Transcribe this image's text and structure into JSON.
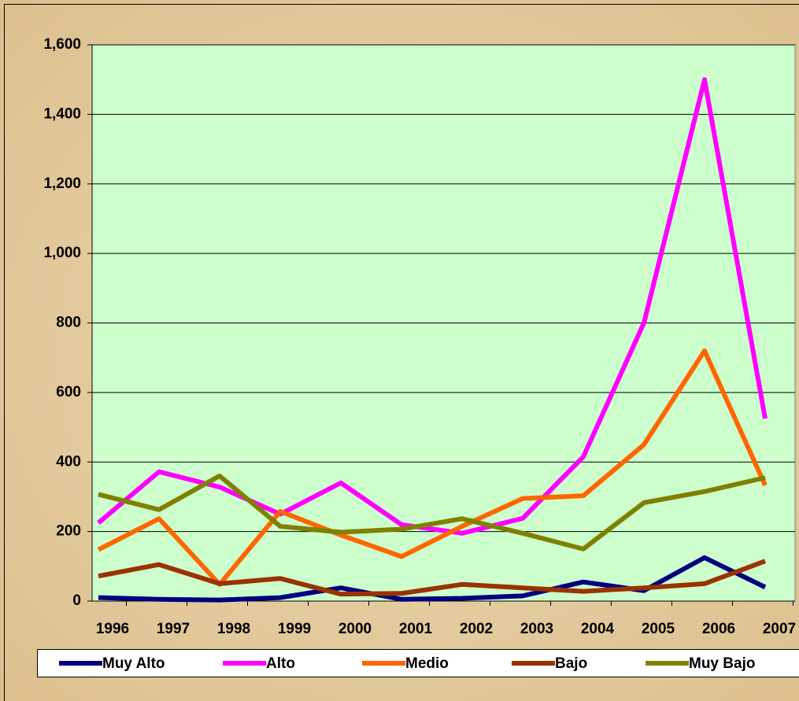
{
  "chart_data": {
    "type": "line",
    "categories": [
      "1996",
      "1997",
      "1998",
      "1999",
      "2000",
      "2001",
      "2002",
      "2003",
      "2004",
      "2005",
      "2006",
      "2007"
    ],
    "series": [
      {
        "name": "Muy Alto",
        "color": "#000080",
        "values": [
          10,
          5,
          3,
          10,
          38,
          5,
          8,
          15,
          55,
          30,
          125,
          40
        ]
      },
      {
        "name": "Alto",
        "color": "#ff00ff",
        "values": [
          225,
          372,
          328,
          250,
          340,
          220,
          195,
          238,
          415,
          800,
          1500,
          525
        ]
      },
      {
        "name": "Medio",
        "color": "#ff6600",
        "values": [
          148,
          237,
          48,
          258,
          190,
          128,
          215,
          295,
          303,
          450,
          720,
          333
        ]
      },
      {
        "name": "Bajo",
        "color": "#993300",
        "values": [
          72,
          105,
          50,
          65,
          20,
          22,
          48,
          38,
          28,
          38,
          50,
          115
        ]
      },
      {
        "name": "Muy Bajo",
        "color": "#808000",
        "values": [
          307,
          263,
          360,
          215,
          198,
          207,
          237,
          195,
          150,
          283,
          315,
          355
        ]
      }
    ],
    "ylim": [
      0,
      1600
    ],
    "yticks": [
      0,
      200,
      400,
      600,
      800,
      {
        "value": 1000,
        "label": "1,000"
      },
      {
        "value": 1200,
        "label": "1,200"
      },
      {
        "value": 1400,
        "label": "1,400"
      },
      {
        "value": 1600,
        "label": "1,600"
      }
    ],
    "grid": true,
    "legend": "bottom",
    "plot_background": "#ccffcc"
  }
}
